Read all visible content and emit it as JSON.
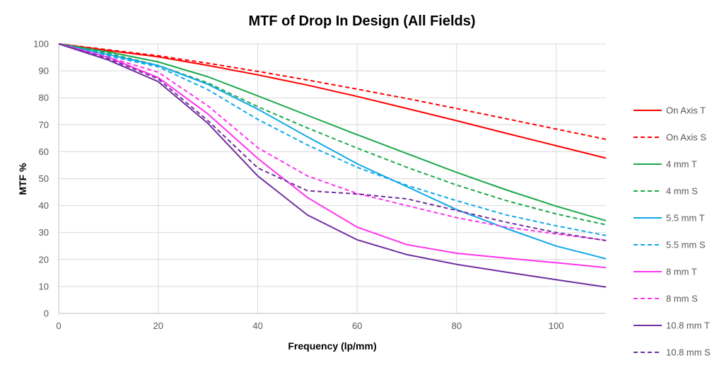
{
  "chart_data": {
    "type": "line",
    "title": "MTF of Drop In Design (All Fields)",
    "xlabel": "Frequency (lp/mm)",
    "ylabel": "MTF %",
    "xlim": [
      0,
      110
    ],
    "ylim": [
      0,
      100
    ],
    "x_ticks": [
      0,
      20,
      40,
      60,
      80,
      100
    ],
    "y_ticks": [
      0,
      10,
      20,
      30,
      40,
      50,
      60,
      70,
      80,
      90,
      100
    ],
    "grid": true,
    "legend_position": "right",
    "x": [
      0,
      10,
      20,
      30,
      40,
      50,
      60,
      70,
      80,
      90,
      100,
      110
    ],
    "series": [
      {
        "name": "On Axis T",
        "color": "#ff0000",
        "dash": "solid",
        "values": [
          100,
          97.5,
          95.2,
          92.0,
          88.5,
          84.7,
          80.5,
          76.0,
          71.5,
          66.8,
          62.2,
          57.6
        ]
      },
      {
        "name": "On Axis S",
        "color": "#ff0000",
        "dash": "dashed",
        "values": [
          100,
          97.8,
          95.6,
          92.8,
          89.8,
          86.6,
          83.2,
          79.7,
          76.0,
          72.2,
          68.4,
          64.6
        ]
      },
      {
        "name": "4 mm T",
        "color": "#1aa84a",
        "dash": "solid",
        "values": [
          100,
          97.0,
          93.3,
          87.8,
          80.7,
          73.5,
          66.3,
          59.3,
          52.3,
          45.8,
          39.8,
          34.4
        ]
      },
      {
        "name": "4 mm S",
        "color": "#1aa84a",
        "dash": "dashed",
        "values": [
          100,
          96.5,
          92.0,
          85.5,
          76.7,
          68.8,
          61.3,
          54.2,
          47.6,
          41.8,
          36.9,
          32.9
        ]
      },
      {
        "name": "5.5 mm T",
        "color": "#10a8e8",
        "dash": "solid",
        "values": [
          100,
          96.0,
          92.0,
          85.0,
          75.8,
          65.5,
          55.5,
          47.0,
          38.5,
          31.5,
          25.0,
          20.3
        ]
      },
      {
        "name": "5.5 mm S",
        "color": "#10a8e8",
        "dash": "dashed",
        "values": [
          100,
          95.5,
          91.5,
          83.0,
          72.0,
          62.5,
          54.2,
          47.5,
          41.8,
          36.5,
          32.5,
          28.9
        ]
      },
      {
        "name": "8 mm T",
        "color": "#ff33ee",
        "dash": "solid",
        "values": [
          100,
          95.0,
          87.5,
          74.0,
          57.5,
          43.0,
          32.0,
          25.5,
          22.3,
          20.5,
          18.8,
          17.0
        ]
      },
      {
        "name": "8 mm S",
        "color": "#ff33ee",
        "dash": "dashed",
        "values": [
          100,
          95.0,
          89.5,
          77.0,
          61.5,
          51.0,
          44.5,
          40.0,
          35.5,
          32.0,
          29.5,
          27.1
        ]
      },
      {
        "name": "10.8 mm T",
        "color": "#7030a0",
        "dash": "solid",
        "values": [
          100,
          94.0,
          86.0,
          70.5,
          51.0,
          36.5,
          27.3,
          21.8,
          18.2,
          15.3,
          12.5,
          9.8
        ]
      },
      {
        "name": "10.8 mm S",
        "color": "#7030a0",
        "dash": "dashed",
        "values": [
          100,
          94.5,
          87.0,
          71.5,
          54.0,
          45.5,
          44.3,
          42.5,
          38.2,
          33.8,
          30.0,
          27.0
        ]
      }
    ]
  }
}
